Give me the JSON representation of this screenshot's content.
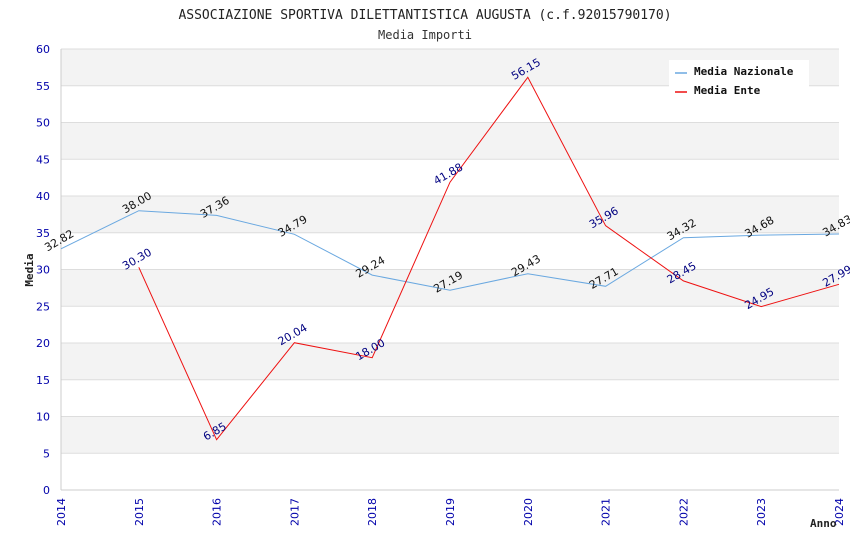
{
  "chart_data": {
    "type": "line",
    "title": "ASSOCIAZIONE SPORTIVA DILETTANTISTICA AUGUSTA (c.f.92015790170)",
    "subtitle": "Media Importi",
    "xlabel": "Anno",
    "ylabel": "Media",
    "ylim": [
      0,
      60
    ],
    "yticks": [
      0,
      5,
      10,
      15,
      20,
      25,
      30,
      35,
      40,
      45,
      50,
      55,
      60
    ],
    "categories": [
      "2014",
      "2015",
      "2016",
      "2017",
      "2018",
      "2019",
      "2020",
      "2021",
      "2022",
      "2023",
      "2024"
    ],
    "legend_position": "top-right",
    "grid": true,
    "series": [
      {
        "name": "Media Nazionale",
        "color": "#6aa8e0",
        "values": [
          32.82,
          38.0,
          37.36,
          34.79,
          29.24,
          27.19,
          29.43,
          27.71,
          34.32,
          34.68,
          34.83
        ],
        "labels": [
          "32.82",
          "38.00",
          "37.36",
          "34.79",
          "29.24",
          "27.19",
          "29.43",
          "27.71",
          "34.32",
          "34.68",
          "34.83"
        ]
      },
      {
        "name": "Media Ente",
        "color": "#ee1111",
        "values": [
          null,
          30.3,
          6.85,
          20.04,
          18.0,
          41.88,
          56.15,
          35.96,
          28.45,
          24.95,
          27.99
        ],
        "labels": [
          null,
          "30.30",
          "6.85",
          "20.04",
          "18.00",
          "41.88",
          "56.15",
          "35.96",
          "28.45",
          "24.95",
          "27.99"
        ]
      }
    ]
  }
}
